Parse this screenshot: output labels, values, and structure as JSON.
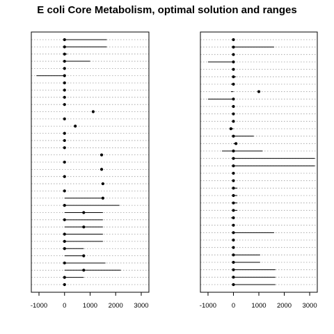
{
  "chart_data": {
    "type": "range-dotplot",
    "title": "E coli Core Metabolism, optimal solution and ranges",
    "xlim": [
      -1300,
      3300
    ],
    "xticks": [
      -1000,
      0,
      1000,
      2000,
      3000
    ],
    "xtick_labels": [
      "-1000",
      "0",
      "1000",
      "2000",
      "3000"
    ],
    "grid": "dotted horizontal",
    "panels": [
      {
        "rows": [
          {
            "opt": 0,
            "lo": 0,
            "hi": 1650
          },
          {
            "opt": 0,
            "lo": 0,
            "hi": 1650
          },
          {
            "opt": 0,
            "lo": 0,
            "hi": 100
          },
          {
            "opt": 0,
            "lo": 0,
            "hi": 1000
          },
          {
            "opt": 0,
            "lo": 0,
            "hi": 0
          },
          {
            "opt": 0,
            "lo": -1100,
            "hi": 0
          },
          {
            "opt": 0,
            "lo": 0,
            "hi": 0
          },
          {
            "opt": 0,
            "lo": 0,
            "hi": 0
          },
          {
            "opt": 0,
            "lo": 0,
            "hi": 0
          },
          {
            "opt": 0,
            "lo": 0,
            "hi": 0
          },
          {
            "opt": 1120,
            "lo": 1120,
            "hi": 1120
          },
          {
            "opt": 0,
            "lo": 0,
            "hi": 0
          },
          {
            "opt": 420,
            "lo": 420,
            "hi": 420
          },
          {
            "opt": 0,
            "lo": 0,
            "hi": 0
          },
          {
            "opt": 0,
            "lo": 0,
            "hi": 0
          },
          {
            "opt": 0,
            "lo": 0,
            "hi": 0
          },
          {
            "opt": 1450,
            "lo": 1450,
            "hi": 1450
          },
          {
            "opt": 0,
            "lo": 0,
            "hi": 0
          },
          {
            "opt": 1450,
            "lo": 1450,
            "hi": 1450
          },
          {
            "opt": 0,
            "lo": 0,
            "hi": 0
          },
          {
            "opt": 1500,
            "lo": 1500,
            "hi": 1500
          },
          {
            "opt": 0,
            "lo": 0,
            "hi": 0
          },
          {
            "opt": 1500,
            "lo": 0,
            "hi": 1500
          },
          {
            "opt": 0,
            "lo": 0,
            "hi": 2150
          },
          {
            "opt": 750,
            "lo": 0,
            "hi": 1500
          },
          {
            "opt": 0,
            "lo": 0,
            "hi": 1500
          },
          {
            "opt": 750,
            "lo": 0,
            "hi": 1500
          },
          {
            "opt": 0,
            "lo": 0,
            "hi": 1500
          },
          {
            "opt": 0,
            "lo": 0,
            "hi": 1500
          },
          {
            "opt": 0,
            "lo": 0,
            "hi": 750
          },
          {
            "opt": 750,
            "lo": 0,
            "hi": 750
          },
          {
            "opt": 0,
            "lo": 0,
            "hi": 1600
          },
          {
            "opt": 750,
            "lo": 0,
            "hi": 2200
          },
          {
            "opt": 0,
            "lo": 0,
            "hi": 750
          },
          {
            "opt": 0,
            "lo": 0,
            "hi": 0
          }
        ]
      },
      {
        "rows": [
          {
            "opt": 0,
            "lo": 0,
            "hi": 0
          },
          {
            "opt": 0,
            "lo": 0,
            "hi": 1600
          },
          {
            "opt": 0,
            "lo": 0,
            "hi": 0
          },
          {
            "opt": 0,
            "lo": -1000,
            "hi": 0
          },
          {
            "opt": 0,
            "lo": 0,
            "hi": 0
          },
          {
            "opt": 0,
            "lo": 0,
            "hi": 100
          },
          {
            "opt": 0,
            "lo": -100,
            "hi": 0
          },
          {
            "opt": 1000,
            "lo": -100,
            "hi": 0
          },
          {
            "opt": 0,
            "lo": -1000,
            "hi": 0
          },
          {
            "opt": 0,
            "lo": 0,
            "hi": 0
          },
          {
            "opt": 0,
            "lo": 0,
            "hi": 0
          },
          {
            "opt": 0,
            "lo": 0,
            "hi": 0
          },
          {
            "opt": -100,
            "lo": -100,
            "hi": 0
          },
          {
            "opt": 0,
            "lo": 0,
            "hi": 800
          },
          {
            "opt": 100,
            "lo": 0,
            "hi": 100
          },
          {
            "opt": 0,
            "lo": -450,
            "hi": 1150
          },
          {
            "opt": 0,
            "lo": 0,
            "hi": 3200
          },
          {
            "opt": 0,
            "lo": 0,
            "hi": 3200
          },
          {
            "opt": 0,
            "lo": -50,
            "hi": 0
          },
          {
            "opt": 0,
            "lo": 0,
            "hi": 0
          },
          {
            "opt": 0,
            "lo": 0,
            "hi": 150
          },
          {
            "opt": 0,
            "lo": 0,
            "hi": 150
          },
          {
            "opt": 0,
            "lo": 0,
            "hi": 150
          },
          {
            "opt": 0,
            "lo": 0,
            "hi": 150
          },
          {
            "opt": 0,
            "lo": -100,
            "hi": 0
          },
          {
            "opt": 0,
            "lo": 0,
            "hi": 0
          },
          {
            "opt": 0,
            "lo": 0,
            "hi": 1600
          },
          {
            "opt": 0,
            "lo": 0,
            "hi": 0
          },
          {
            "opt": 0,
            "lo": 0,
            "hi": 0
          },
          {
            "opt": 0,
            "lo": 0,
            "hi": 1050
          },
          {
            "opt": 0,
            "lo": 0,
            "hi": 1050
          },
          {
            "opt": 0,
            "lo": 0,
            "hi": 1650
          },
          {
            "opt": 0,
            "lo": 0,
            "hi": 1650
          },
          {
            "opt": 0,
            "lo": 0,
            "hi": 1650
          }
        ]
      }
    ]
  }
}
